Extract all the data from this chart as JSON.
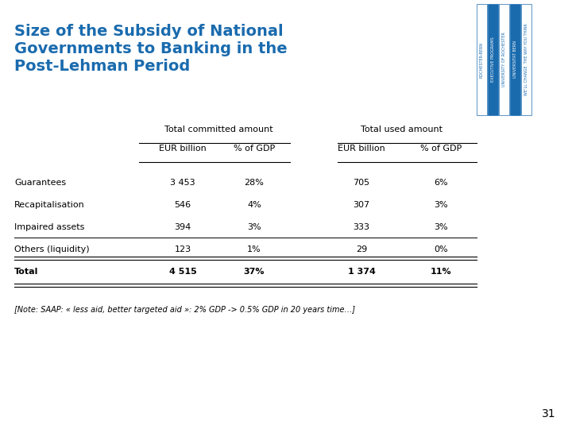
{
  "title_line1": "Size of the Subsidy of National",
  "title_line2": "Governments to Banking in the",
  "title_line3": "Post-Lehman Period",
  "title_color": "#1A6BAE",
  "background_color": "#FFFFFF",
  "table_header1": "Total committed amount",
  "table_header2": "Total used amount",
  "col_headers": [
    "EUR billion",
    "% of GDP",
    "EUR billion",
    "% of GDP"
  ],
  "row_labels": [
    "Guarantees",
    "Recapitalisation",
    "Impaired assets",
    "Others (liquidity)",
    "Total"
  ],
  "data": [
    [
      "3 453",
      "28%",
      "705",
      "6%"
    ],
    [
      "546",
      "4%",
      "307",
      "3%"
    ],
    [
      "394",
      "3%",
      "333",
      "3%"
    ],
    [
      "123",
      "1%",
      "29",
      "0%"
    ],
    [
      "4 515",
      "37%",
      "1 374",
      "11%"
    ]
  ],
  "note": "[Note: SAAP: « less aid, better targeted aid »: 2% GDP -> 0.5% GDP in 20 years time…]",
  "page_number": "31",
  "logo_texts": [
    "ROCHESTER-BERN",
    "EXECUTIVE PROGRAMS",
    "UNIVERSITY OF ROCHESTER",
    "UNIVERSITAT BERN",
    "WE’LL CHANGE THE WAY YOU THINK"
  ],
  "logo_colors": [
    "#1A6BAE",
    "#1A6BAE",
    "#1A6BAE",
    "#1A6BAE",
    "#1A6BAE"
  ],
  "logo_bg_colors": [
    "#FFFFFF",
    "#1A6BAE",
    "#FFFFFF",
    "#1A6BAE",
    "#FFFFFF"
  ],
  "header_line_color": "#000000",
  "font_size_title": 14,
  "font_size_header": 8,
  "font_size_data": 8,
  "font_size_note": 7
}
